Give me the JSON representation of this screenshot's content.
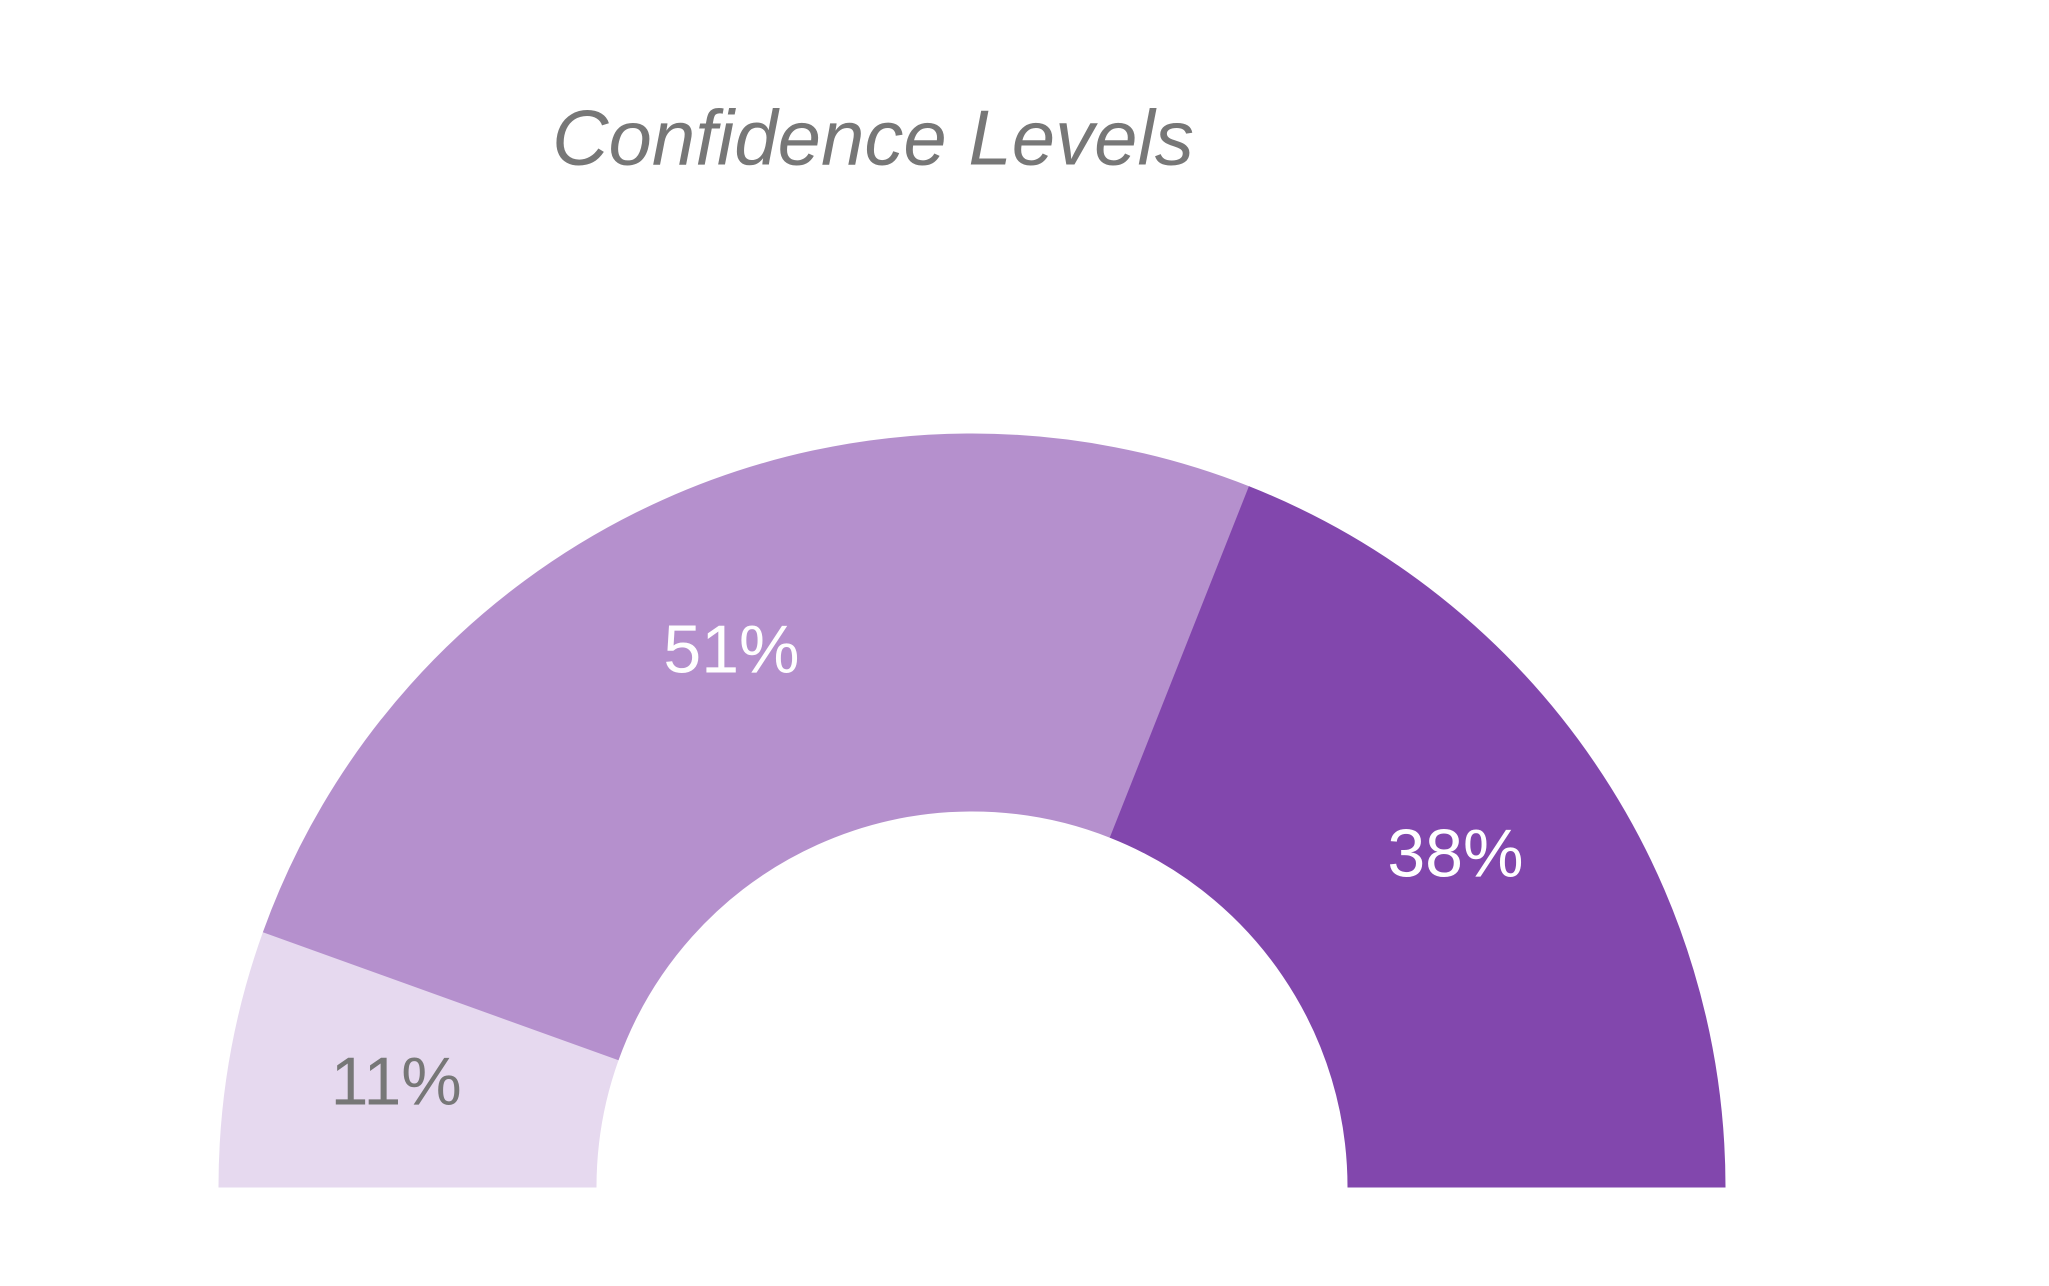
{
  "chart_data": {
    "type": "pie",
    "title": "Confidence Levels",
    "values": [
      11,
      51,
      38
    ],
    "value_labels": [
      "11%",
      "51%",
      "38%"
    ],
    "colors": [
      "#e6d9ef",
      "#b590cd",
      "#8247ad"
    ]
  }
}
